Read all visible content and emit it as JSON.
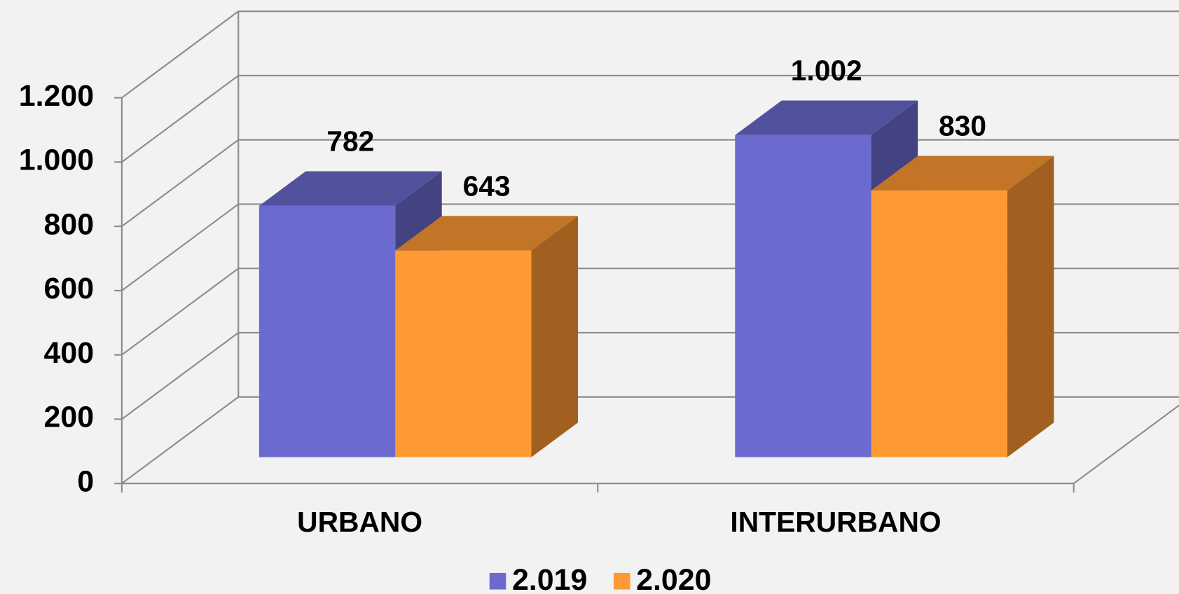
{
  "chart_data": {
    "type": "bar3d",
    "categories": [
      "URBANO",
      "INTERURBANO"
    ],
    "series": [
      {
        "name": "2.019",
        "color": "#6b6bcf",
        "values": [
          782,
          1002
        ],
        "value_labels": [
          "782",
          "1.002"
        ]
      },
      {
        "name": "2.020",
        "color": "#ff9933",
        "values": [
          643,
          830
        ],
        "value_labels": [
          "643",
          "830"
        ]
      }
    ],
    "ylim": [
      0,
      1200
    ],
    "yticks": [
      0,
      200,
      400,
      600,
      800,
      {
        "value": 1000,
        "label": "1.000"
      },
      {
        "value": 1200,
        "label": "1.200"
      }
    ],
    "grid": true,
    "legend": "bottom"
  }
}
